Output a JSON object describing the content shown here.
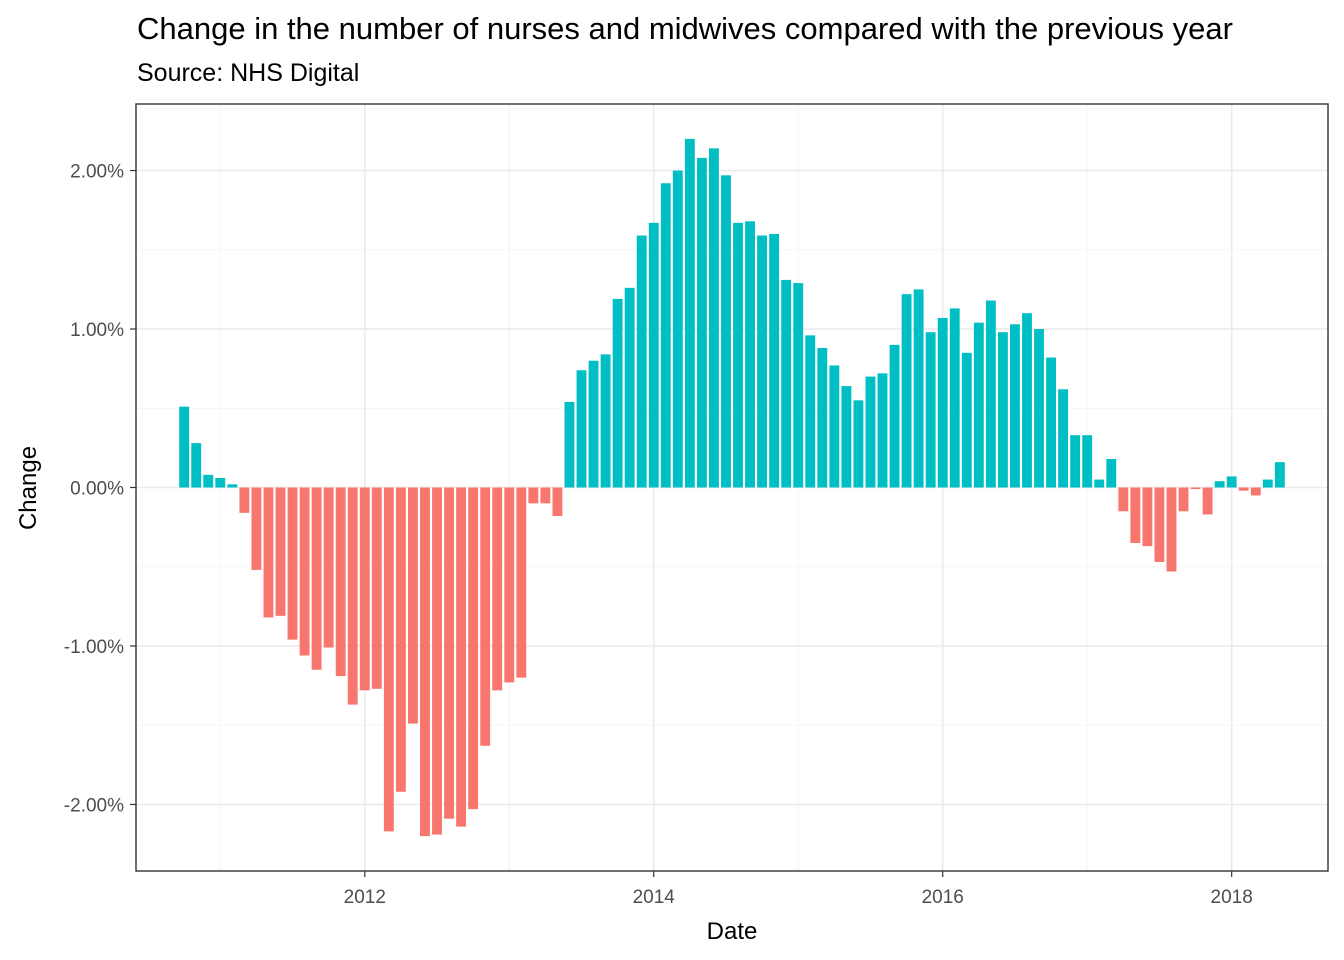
{
  "chart_data": {
    "type": "bar",
    "title": "Change in the number of nurses and midwives compared with the previous year",
    "subtitle": "Source: NHS Digital",
    "xlabel": "Date",
    "ylabel": "Change",
    "x_ticks": [
      "2012",
      "2014",
      "2016",
      "2018"
    ],
    "y_ticks": [
      "-2.00%",
      "-1.00%",
      "0.00%",
      "1.00%",
      "2.00%"
    ],
    "ylim": [
      -2.42,
      2.42
    ],
    "x_range": [
      "2010-06",
      "2018-09"
    ],
    "first_period": "2010-10",
    "frequency": "monthly",
    "grid": true,
    "legend": "none",
    "colors": {
      "positive": "#00BFC4",
      "negative": "#F8766D"
    },
    "values": [
      0.51,
      0.28,
      0.08,
      0.06,
      0.02,
      -0.16,
      -0.52,
      -0.82,
      -0.81,
      -0.96,
      -1.06,
      -1.15,
      -1.01,
      -1.19,
      -1.37,
      -1.28,
      -1.27,
      -2.17,
      -1.92,
      -1.49,
      -2.2,
      -2.19,
      -2.09,
      -2.14,
      -2.03,
      -1.63,
      -1.28,
      -1.23,
      -1.2,
      -0.1,
      -0.1,
      -0.18,
      0.54,
      0.74,
      0.8,
      0.84,
      1.19,
      1.26,
      1.59,
      1.67,
      1.92,
      2.0,
      2.2,
      2.08,
      2.14,
      1.97,
      1.67,
      1.68,
      1.59,
      1.6,
      1.31,
      1.29,
      0.96,
      0.88,
      0.77,
      0.64,
      0.55,
      0.7,
      0.72,
      0.9,
      1.22,
      1.25,
      0.98,
      1.07,
      1.13,
      0.85,
      1.04,
      1.18,
      0.98,
      1.03,
      1.1,
      1.0,
      0.82,
      0.62,
      0.33,
      0.33,
      0.05,
      0.18,
      -0.15,
      -0.35,
      -0.37,
      -0.47,
      -0.53,
      -0.15,
      -0.01,
      -0.17,
      0.04,
      0.07,
      -0.02,
      -0.05,
      0.05,
      0.16
    ]
  }
}
